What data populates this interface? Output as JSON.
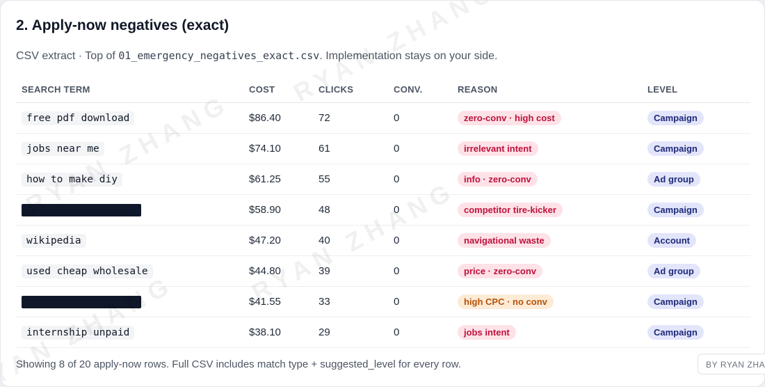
{
  "header": {
    "title": "2. Apply-now negatives (exact)",
    "subtitle_prefix": "CSV extract · Top of ",
    "subtitle_file": "01_emergency_negatives_exact.csv",
    "subtitle_suffix": ". Implementation stays on your side."
  },
  "table": {
    "columns": [
      "SEARCH TERM",
      "COST",
      "CLICKS",
      "CONV.",
      "REASON",
      "LEVEL"
    ],
    "rows": [
      {
        "term": "free pdf download",
        "redacted": false,
        "cost": "$86.40",
        "clicks": "72",
        "conv": "0",
        "reason": "zero-conv · high cost",
        "reason_color": "#be123c",
        "level": "Campaign"
      },
      {
        "term": "jobs near me",
        "redacted": false,
        "cost": "$74.10",
        "clicks": "61",
        "conv": "0",
        "reason": "irrelevant intent",
        "reason_color": "#be123c",
        "level": "Campaign"
      },
      {
        "term": "how to make diy",
        "redacted": false,
        "cost": "$61.25",
        "clicks": "55",
        "conv": "0",
        "reason": "info · zero-conv",
        "reason_color": "#be123c",
        "level": "Ad group"
      },
      {
        "term": "",
        "redacted": true,
        "cost": "$58.90",
        "clicks": "48",
        "conv": "0",
        "reason": "competitor tire-kicker",
        "reason_color": "#be123c",
        "level": "Campaign"
      },
      {
        "term": "wikipedia",
        "redacted": false,
        "cost": "$47.20",
        "clicks": "40",
        "conv": "0",
        "reason": "navigational waste",
        "reason_color": "#be123c",
        "level": "Account"
      },
      {
        "term": "used cheap wholesale",
        "redacted": false,
        "cost": "$44.80",
        "clicks": "39",
        "conv": "0",
        "reason": "price · zero-conv",
        "reason_color": "#be123c",
        "level": "Ad group"
      },
      {
        "term": "",
        "redacted": true,
        "cost": "$41.55",
        "clicks": "33",
        "conv": "0",
        "reason": "high CPC · no conv",
        "reason_color": "#b45309",
        "level": "Campaign"
      },
      {
        "term": "internship unpaid",
        "redacted": false,
        "cost": "$38.10",
        "clicks": "29",
        "conv": "0",
        "reason": "jobs intent",
        "reason_color": "#be123c",
        "level": "Campaign"
      }
    ]
  },
  "footer": {
    "text": "Showing 8 of 20 apply-now rows. Full CSV includes match type + suggested_level for every row.",
    "badge": "BY RYAN ZHANG"
  },
  "watermark": {
    "text": "RYAN ZHANG"
  }
}
